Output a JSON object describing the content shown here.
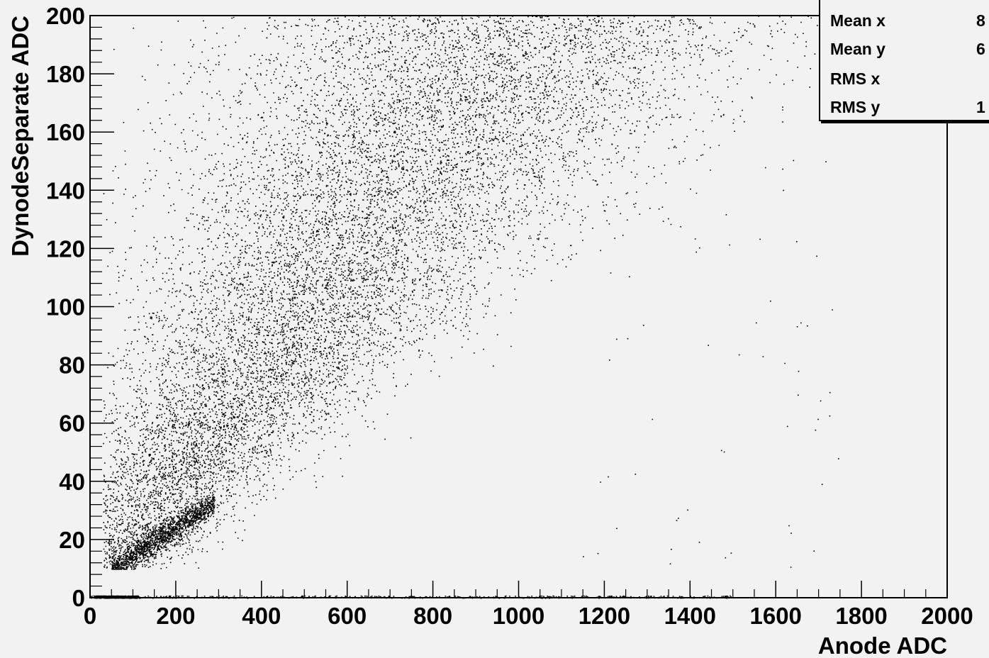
{
  "chart_data": {
    "type": "scatter",
    "title": "",
    "xlabel": "Anode ADC",
    "ylabel": "DynodeSeparate ADC",
    "xlim": [
      0,
      2000
    ],
    "ylim": [
      0,
      200
    ],
    "x_ticks": [
      "0",
      "200",
      "400",
      "600",
      "800",
      "1000",
      "1200",
      "1400",
      "1600",
      "1800",
      "2000"
    ],
    "y_ticks": [
      "0",
      "20",
      "40",
      "60",
      "80",
      "100",
      "120",
      "140",
      "160",
      "180",
      "200"
    ],
    "grid": false,
    "description_of_density": "Dense diagonal band of points from (50,10) to (1100,200); narrow bright band at low anode (50-300) with y 10-30; flat line of points at y≈0 along x 0-1500; sparse outliers extending to x≈1700.",
    "point_regions": [
      {
        "region": "main band",
        "x_range": [
          30,
          1150
        ],
        "y_range": [
          10,
          200
        ],
        "trend_slope_y_per_x": 0.19,
        "approx_points": 16000
      },
      {
        "region": "low ridge",
        "x_range": [
          50,
          290
        ],
        "y_range": [
          10,
          32
        ],
        "approx_points": 1500
      },
      {
        "region": "zero line",
        "x_range": [
          0,
          1500
        ],
        "y_range": [
          0,
          1
        ],
        "approx_points": 1200
      },
      {
        "region": "outliers",
        "x_range": [
          1150,
          1750
        ],
        "y_range": [
          10,
          200
        ],
        "approx_points": 80
      }
    ]
  },
  "stats": {
    "rows": [
      {
        "label": "Mean x",
        "value": "8"
      },
      {
        "label": "Mean y",
        "value": "6"
      },
      {
        "label": "RMS x",
        "value": ""
      },
      {
        "label": "RMS y",
        "value": "1"
      }
    ]
  }
}
